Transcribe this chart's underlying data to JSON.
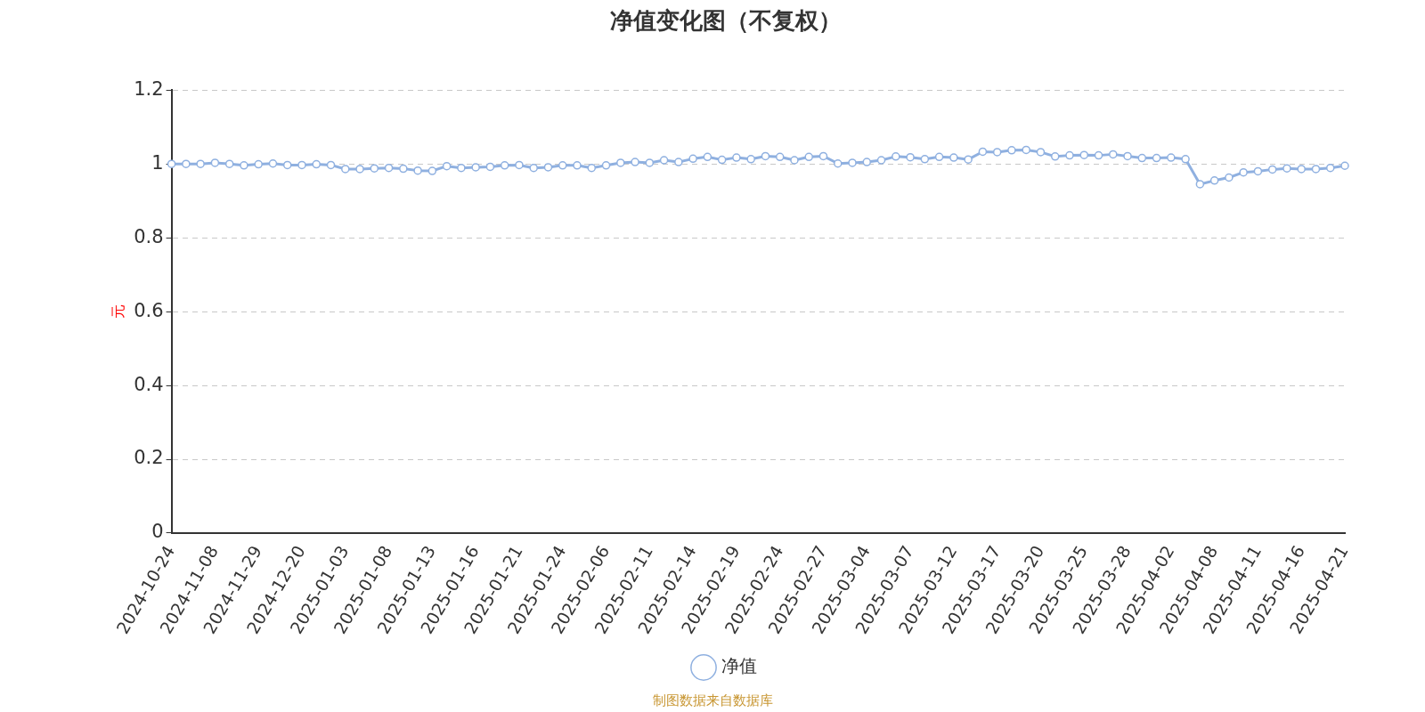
{
  "chart_data": {
    "type": "line",
    "title": "净值变化图（不复权）",
    "ylabel": "元",
    "categories": [
      "2024-10-24",
      null,
      null,
      "2024-11-08",
      null,
      null,
      "2024-11-29",
      null,
      null,
      "2024-12-20",
      null,
      null,
      "2025-01-03",
      null,
      null,
      "2025-01-08",
      null,
      null,
      "2025-01-13",
      null,
      null,
      "2025-01-16",
      null,
      null,
      "2025-01-21",
      null,
      null,
      "2025-01-24",
      null,
      null,
      "2025-02-06",
      null,
      null,
      "2025-02-11",
      null,
      null,
      "2025-02-14",
      null,
      null,
      "2025-02-19",
      null,
      null,
      "2025-02-24",
      null,
      null,
      "2025-02-27",
      null,
      null,
      "2025-03-04",
      null,
      null,
      "2025-03-07",
      null,
      null,
      "2025-03-12",
      null,
      null,
      "2025-03-17",
      null,
      null,
      "2025-03-20",
      null,
      null,
      "2025-03-25",
      null,
      null,
      "2025-03-28",
      null,
      null,
      "2025-04-02",
      null,
      null,
      "2025-04-08",
      null,
      null,
      "2025-04-11",
      null,
      null,
      "2025-04-16",
      null,
      null,
      "2025-04-21"
    ],
    "series": [
      {
        "name": "净值",
        "color": "#8fb0e0",
        "values": [
          1.0,
          1.0,
          1.0,
          1.003,
          1.0,
          0.996,
          0.999,
          1.001,
          0.997,
          0.997,
          0.999,
          0.997,
          0.986,
          0.986,
          0.988,
          0.989,
          0.987,
          0.982,
          0.981,
          0.994,
          0.989,
          0.991,
          0.992,
          0.996,
          0.997,
          0.989,
          0.991,
          0.996,
          0.996,
          0.989,
          0.996,
          1.003,
          1.005,
          1.003,
          1.01,
          1.005,
          1.014,
          1.019,
          1.011,
          1.017,
          1.013,
          1.021,
          1.019,
          1.01,
          1.019,
          1.021,
          1.001,
          1.003,
          1.005,
          1.01,
          1.02,
          1.018,
          1.013,
          1.019,
          1.017,
          1.012,
          1.033,
          1.032,
          1.037,
          1.038,
          1.032,
          1.02,
          1.023,
          1.024,
          1.023,
          1.026,
          1.021,
          1.016,
          1.016,
          1.017,
          1.013,
          0.945,
          0.955,
          0.963,
          0.977,
          0.98,
          0.985,
          0.988,
          0.986,
          0.986,
          0.989,
          0.995
        ]
      }
    ],
    "ylim": [
      0,
      1.2
    ],
    "yticks": [
      0,
      0.2,
      0.4,
      0.6,
      0.8,
      1,
      1.2
    ],
    "grid": "y",
    "legend": "bottom",
    "marker": "circle",
    "line_style": "solid",
    "annotations": [
      "制图数据来自数据库"
    ]
  }
}
